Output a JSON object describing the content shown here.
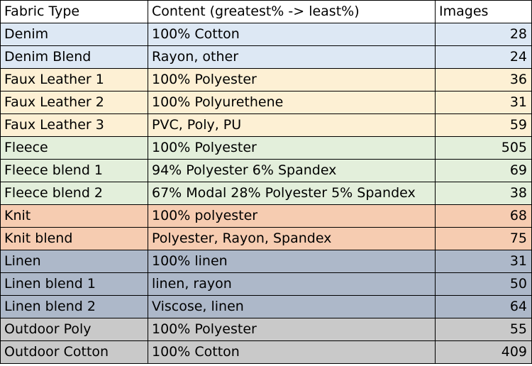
{
  "table": {
    "headers": [
      "Fabric Type",
      "Content (greatest% -> least%)",
      "Images"
    ],
    "rows": [
      {
        "type": "Denim",
        "content": "100% Cotton",
        "images": "28",
        "color": "#dde8f4"
      },
      {
        "type": "Denim Blend",
        "content": "Rayon, other",
        "images": "24",
        "color": "#dde8f4"
      },
      {
        "type": "Faux Leather 1",
        "content": "100% Polyester",
        "images": "36",
        "color": "#fdf0d4"
      },
      {
        "type": "Faux Leather 2",
        "content": "100% Polyurethene",
        "images": "31",
        "color": "#fdf0d4"
      },
      {
        "type": "Faux Leather 3",
        "content": "PVC, Poly, PU",
        "images": "59",
        "color": "#fdf0d4"
      },
      {
        "type": "Fleece",
        "content": "100% Polyester",
        "images": "505",
        "color": "#e3efdb"
      },
      {
        "type": "Fleece blend 1",
        "content": "94% Polyester 6% Spandex",
        "images": "69",
        "color": "#e3efdb"
      },
      {
        "type": "Fleece blend 2",
        "content": "67% Modal 28% Polyester 5% Spandex",
        "images": "38",
        "color": "#e3efdb"
      },
      {
        "type": "Knit",
        "content": "100% polyester",
        "images": "68",
        "color": "#f6ccb1"
      },
      {
        "type": "Knit blend",
        "content": "Polyester, Rayon, Spandex",
        "images": "75",
        "color": "#f6ccb1"
      },
      {
        "type": "Linen",
        "content": "100% linen",
        "images": "31",
        "color": "#adb8c9"
      },
      {
        "type": "Linen blend 1",
        "content": "linen, rayon",
        "images": "50",
        "color": "#adb8c9"
      },
      {
        "type": "Linen blend 2",
        "content": "Viscose, linen",
        "images": "64",
        "color": "#adb8c9"
      },
      {
        "type": "Outdoor Poly",
        "content": "100% Polyester",
        "images": "55",
        "color": "#c9c9c9"
      },
      {
        "type": "Outdoor Cotton",
        "content": "100% Cotton",
        "images": "409",
        "color": "#c9c9c9"
      }
    ]
  }
}
